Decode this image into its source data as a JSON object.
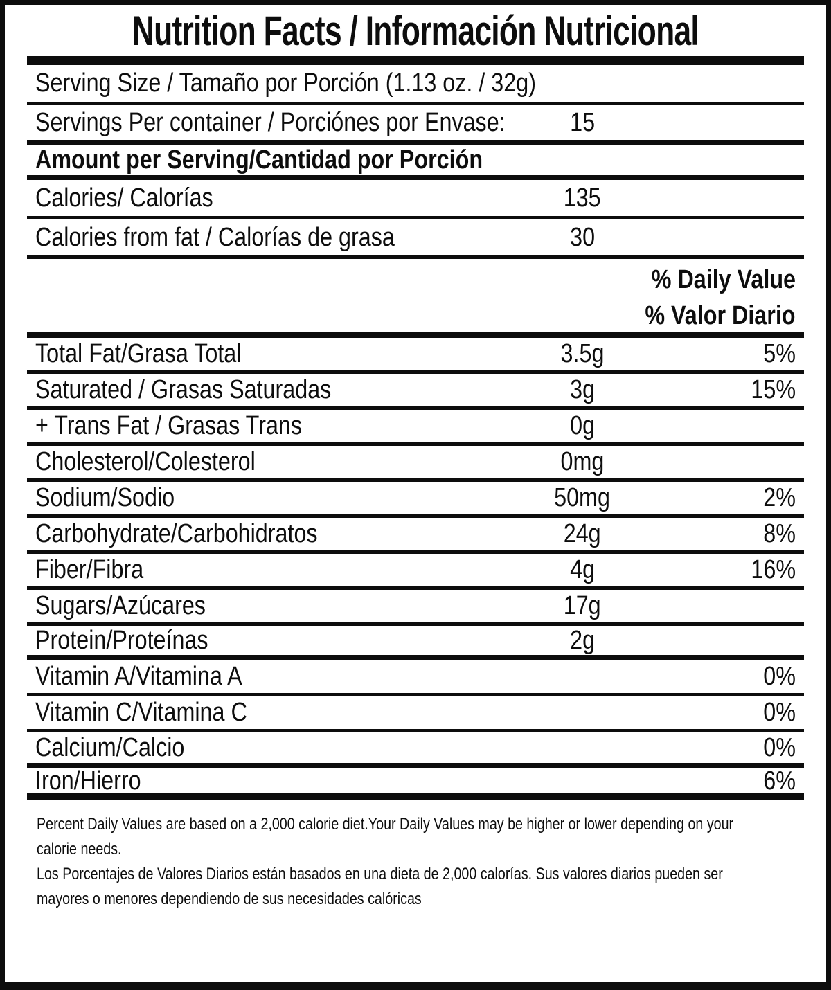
{
  "title": "Nutrition Facts / Información Nutricional",
  "serving": {
    "size_label": "Serving Size / Tamaño por Porción (1.13 oz. / 32g)",
    "per_container_label": "Servings Per container / Porciónes por Envase:",
    "per_container_value": "15"
  },
  "amount_header": "Amount per Serving/Cantidad por Porción",
  "calories": {
    "label": "Calories/ Calorías",
    "value": "135"
  },
  "calories_from_fat": {
    "label": "Calories from fat / Calorías de grasa",
    "value": "30"
  },
  "daily_value_header": {
    "line1": "% Daily Value",
    "line2": "% Valor Diario"
  },
  "nutrients": [
    {
      "label": "Total Fat/Grasa Total",
      "amount": "3.5g",
      "dv": "5%"
    },
    {
      "label": "Saturated / Grasas Saturadas",
      "amount": "3g",
      "dv": "15%"
    },
    {
      "label": "+ Trans Fat / Grasas Trans",
      "amount": "0g",
      "dv": ""
    },
    {
      "label": "Cholesterol/Colesterol",
      "amount": "0mg",
      "dv": ""
    },
    {
      "label": "Sodium/Sodio",
      "amount": "50mg",
      "dv": "2%"
    },
    {
      "label": "Carbohydrate/Carbohidratos",
      "amount": "24g",
      "dv": "8%"
    },
    {
      "label": "Fiber/Fibra",
      "amount": "4g",
      "dv": "16%"
    },
    {
      "label": "Sugars/Azúcares",
      "amount": "17g",
      "dv": ""
    },
    {
      "label": "Protein/Proteínas",
      "amount": "2g",
      "dv": ""
    },
    {
      "label": "Vitamin A/Vitamina A",
      "amount": "",
      "dv": "0%"
    },
    {
      "label": "Vitamin C/Vitamina C",
      "amount": "",
      "dv": "0%"
    },
    {
      "label": "Calcium/Calcio",
      "amount": "",
      "dv": "0%"
    },
    {
      "label": "Iron/Hierro",
      "amount": "",
      "dv": "6%"
    }
  ],
  "footnote": {
    "lines": [
      "Percent Daily Values are based on a 2,000 calorie diet.Your Daily Values may be higher or lower depending on your",
      "calorie needs.",
      "Los Porcentajes de Valores Diarios están basados en una dieta de 2,000 calorías. Sus valores diarios pueden ser",
      "mayores o menores dependiendo de sus necesidades calóricas"
    ]
  }
}
